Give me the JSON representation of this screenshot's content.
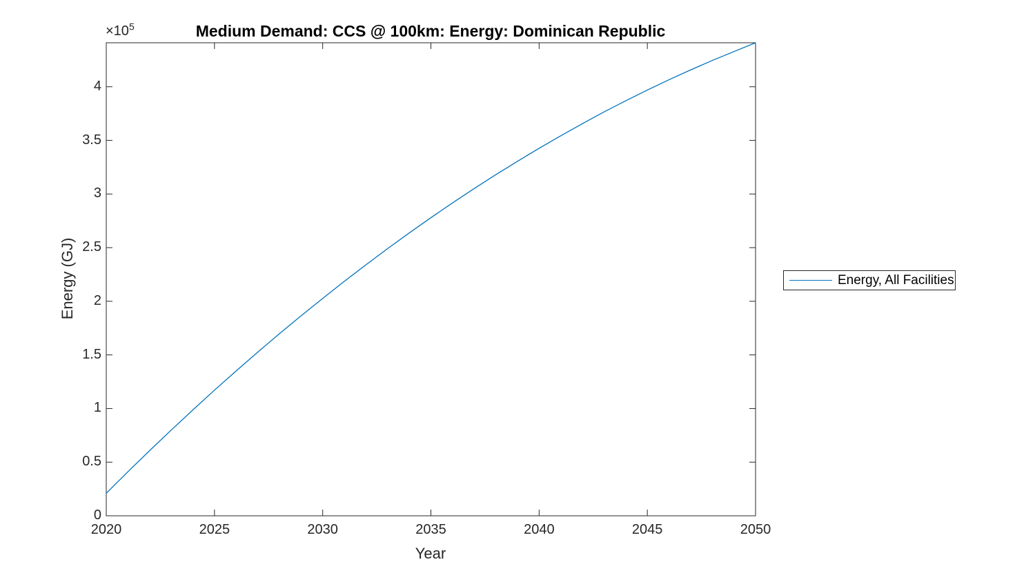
{
  "figure": {
    "background": "#ffffff"
  },
  "colors": {
    "line": "#0072BD",
    "axis": "#262626",
    "text": "#262626",
    "title": "#000000"
  },
  "y_multiplier": {
    "base": "×10",
    "exponent": "5"
  },
  "legend": {
    "entry": "Energy, All Facilities"
  },
  "chart_data": {
    "type": "line",
    "title": "Medium Demand: CCS @ 100km: Energy: Dominican Republic",
    "xlabel": "Year",
    "ylabel": "Energy (GJ)",
    "xlim": [
      2020,
      2050
    ],
    "ylim": [
      0,
      441000
    ],
    "grid": false,
    "box": true,
    "tick_direction": "in",
    "x_ticks": [
      2020,
      2025,
      2030,
      2035,
      2040,
      2045,
      2050
    ],
    "y_ticks": {
      "values": [
        0,
        50000,
        100000,
        150000,
        200000,
        250000,
        300000,
        350000,
        400000
      ],
      "labels": [
        "0",
        "0.5",
        "1",
        "1.5",
        "2",
        "2.5",
        "3",
        "3.5",
        "4"
      ],
      "multiplier_label": "×10^5"
    },
    "legend": {
      "position": "right-outside",
      "entries": [
        "Energy, All Facilities"
      ]
    },
    "series": [
      {
        "name": "Energy, All Facilities",
        "color": "#0072BD",
        "x": [
          2020,
          2021,
          2022,
          2023,
          2024,
          2025,
          2026,
          2027,
          2028,
          2029,
          2030,
          2031,
          2032,
          2033,
          2034,
          2035,
          2036,
          2037,
          2038,
          2039,
          2040,
          2041,
          2042,
          2043,
          2044,
          2045,
          2046,
          2047,
          2048,
          2049,
          2050
        ],
        "values": [
          21000,
          41100,
          60700,
          79900,
          98700,
          117100,
          135000,
          152600,
          169700,
          186400,
          202700,
          218600,
          234000,
          249100,
          263700,
          277900,
          291700,
          305100,
          318000,
          330500,
          342600,
          354300,
          365600,
          376500,
          386900,
          396900,
          406500,
          415700,
          424500,
          432800,
          441000
        ]
      }
    ]
  }
}
